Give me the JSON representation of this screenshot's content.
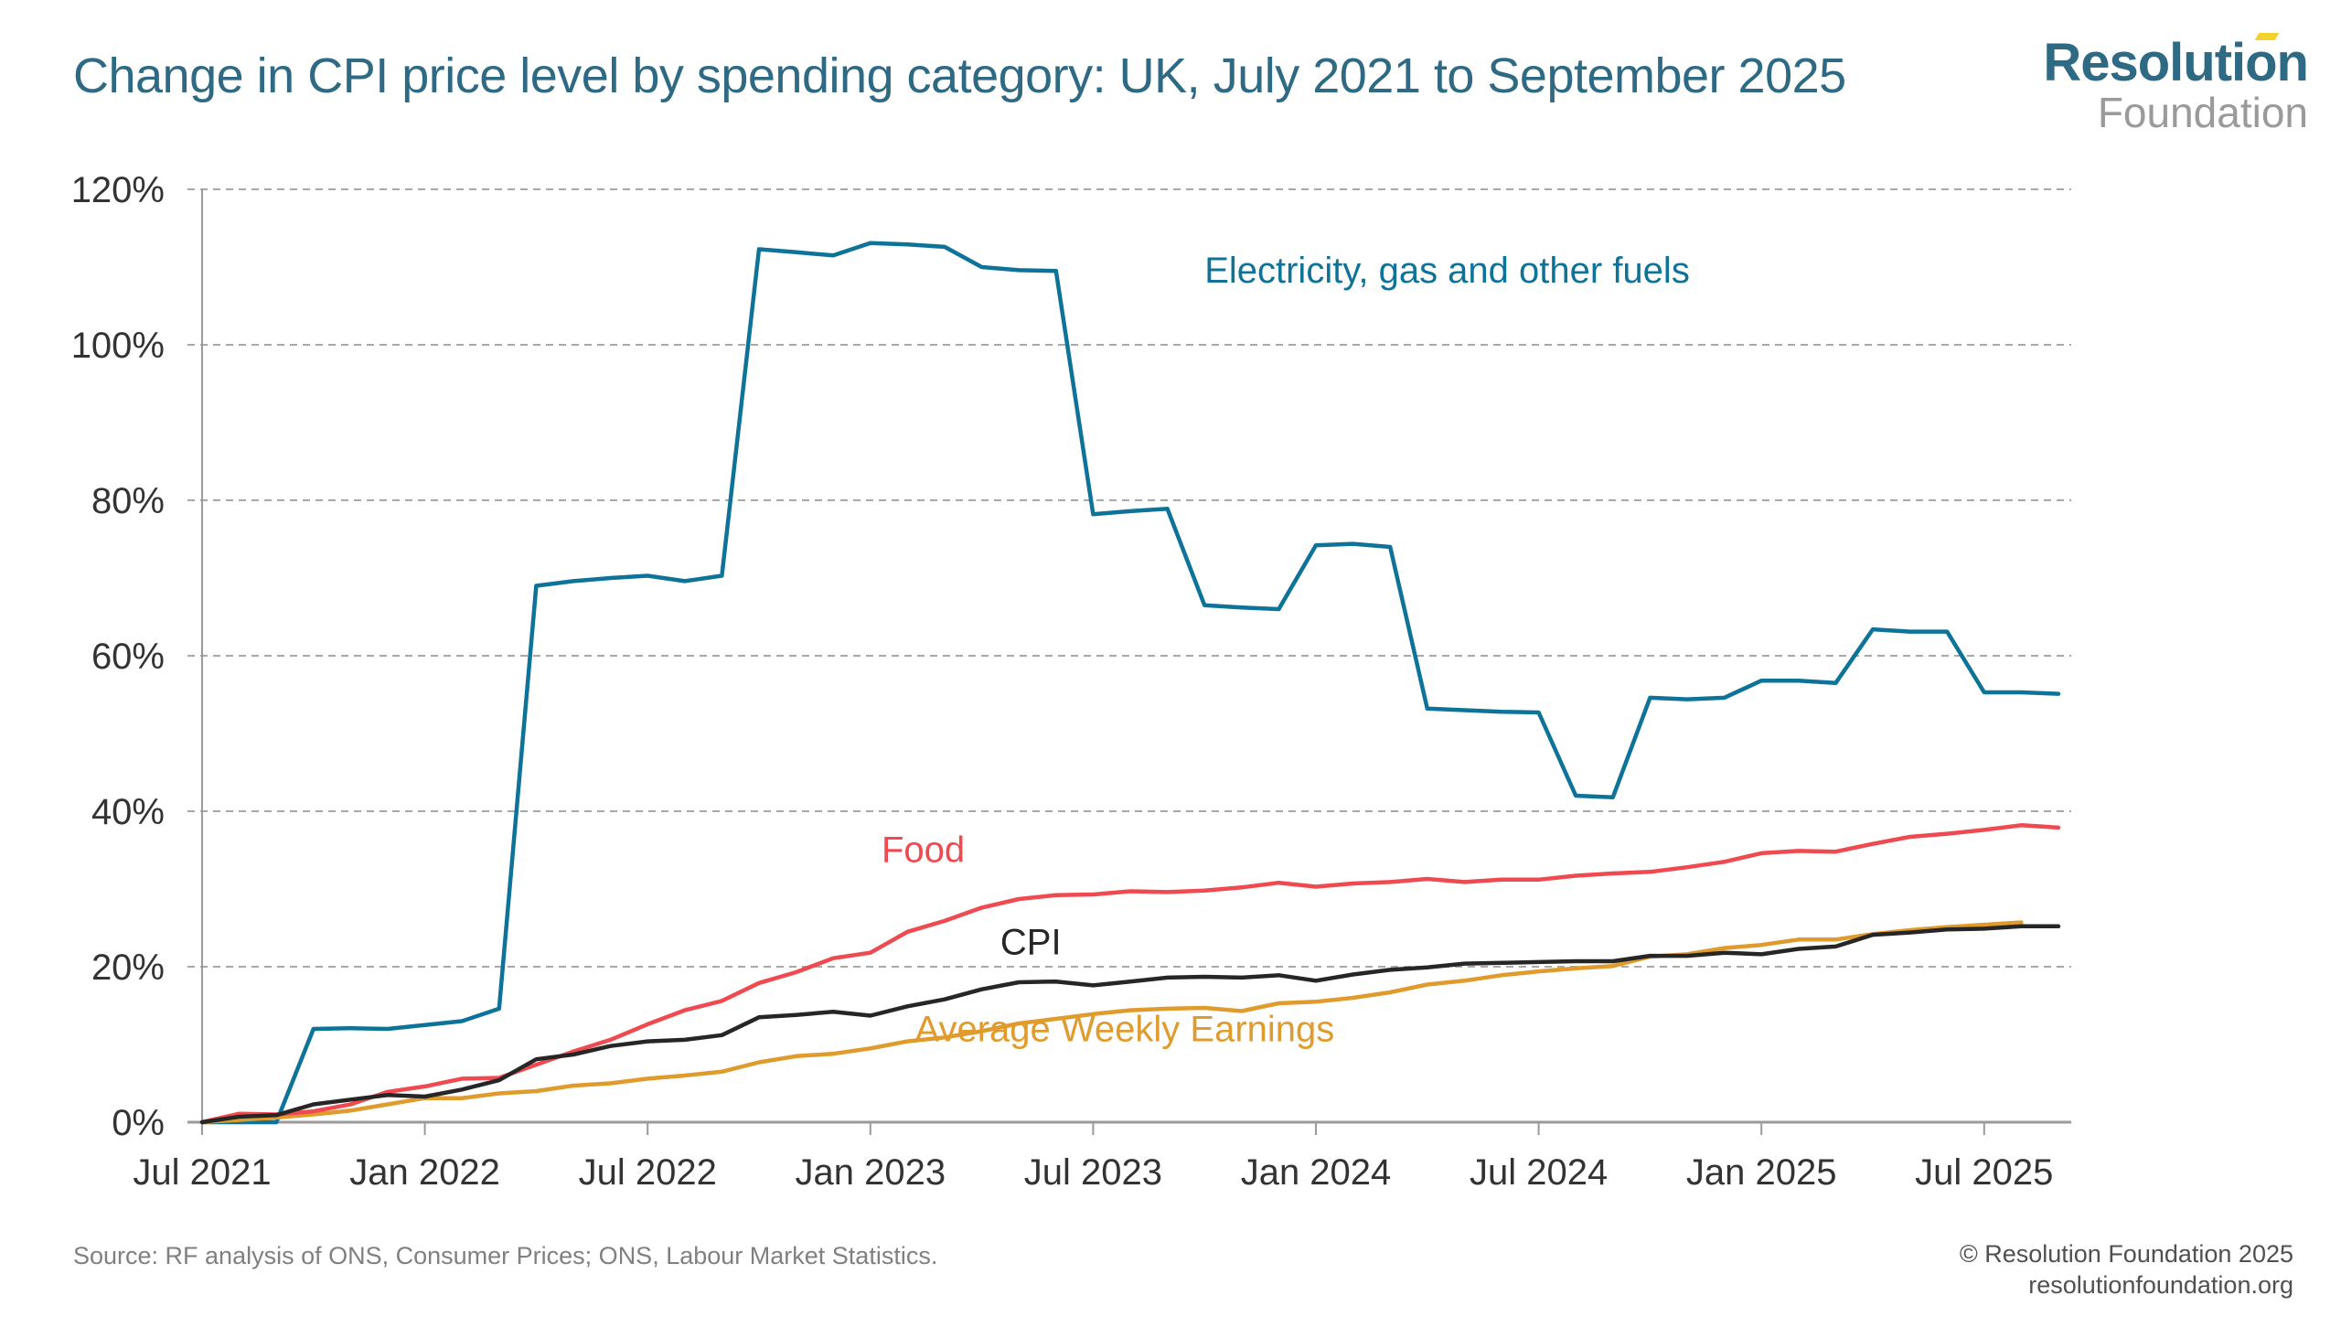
{
  "title": "Change in CPI price level by spending category: UK, July 2021 to September 2025",
  "logo": {
    "line1": "Resolution",
    "line2": "Foundation",
    "accent_color": "#f2d22a",
    "primary_color": "#2e6a84"
  },
  "footer": {
    "source": "Source: RF analysis of ONS, Consumer Prices; ONS, Labour Market Statistics.",
    "copyright": "© Resolution Foundation 2025",
    "website": "resolutionfoundation.org"
  },
  "chart_data": {
    "type": "line",
    "title": "Change in CPI price level by spending category: UK, July 2021 to September 2025",
    "xlabel": "",
    "ylabel": "",
    "x_start": "Jul 2021",
    "x_end": "Sep 2025",
    "x_unit": "month",
    "ylim": [
      0,
      120
    ],
    "y_ticks": [
      0,
      20,
      40,
      60,
      80,
      100,
      120
    ],
    "y_tick_labels": [
      "0%",
      "20%",
      "40%",
      "60%",
      "80%",
      "100%",
      "120%"
    ],
    "x_ticks": [
      {
        "month_index": 0,
        "label": "Jul 2021"
      },
      {
        "month_index": 6,
        "label": "Jan 2022"
      },
      {
        "month_index": 12,
        "label": "Jul 2022"
      },
      {
        "month_index": 18,
        "label": "Jan 2023"
      },
      {
        "month_index": 24,
        "label": "Jul 2023"
      },
      {
        "month_index": 30,
        "label": "Jan 2024"
      },
      {
        "month_index": 36,
        "label": "Jul 2024"
      },
      {
        "month_index": 42,
        "label": "Jan 2025"
      },
      {
        "month_index": 48,
        "label": "Jul 2025"
      }
    ],
    "grid": true,
    "legend": "inline-labels",
    "series": [
      {
        "name": "Electricity, gas and other fuels",
        "color": "#0e7399",
        "label_pos": [
          27,
          108
        ],
        "values": [
          0,
          0,
          0,
          12.0,
          12.1,
          12.0,
          12.5,
          13.0,
          14.6,
          69.0,
          69.6,
          70.0,
          70.3,
          69.6,
          70.3,
          112.3,
          111.9,
          111.5,
          113.1,
          112.9,
          112.6,
          110.0,
          109.6,
          109.5,
          78.2,
          78.6,
          78.9,
          66.5,
          66.2,
          66.0,
          74.2,
          74.4,
          74.0,
          53.2,
          53.0,
          52.8,
          52.7,
          42.0,
          41.8,
          54.6,
          54.4,
          54.6,
          56.8,
          56.8,
          56.5,
          63.4,
          63.1,
          63.1,
          55.3,
          55.3,
          55.1
        ]
      },
      {
        "name": "Food",
        "color": "#ee4a4f",
        "label_pos": [
          18.3,
          33.5
        ],
        "values": [
          0,
          1.1,
          1.0,
          1.4,
          2.3,
          3.9,
          4.6,
          5.6,
          5.7,
          7.4,
          9.1,
          10.6,
          12.6,
          14.4,
          15.6,
          17.9,
          19.3,
          21.1,
          21.8,
          24.5,
          25.9,
          27.6,
          28.7,
          29.2,
          29.3,
          29.7,
          29.6,
          29.8,
          30.2,
          30.8,
          30.3,
          30.7,
          30.9,
          31.3,
          30.9,
          31.2,
          31.2,
          31.7,
          32.0,
          32.2,
          32.8,
          33.5,
          34.6,
          34.9,
          34.8,
          35.8,
          36.7,
          37.1,
          37.6,
          38.2,
          37.9
        ]
      },
      {
        "name": "CPI",
        "color": "#262626",
        "label_pos": [
          21.5,
          21.6
        ],
        "values": [
          0,
          0.7,
          0.9,
          2.3,
          2.9,
          3.5,
          3.3,
          4.2,
          5.4,
          8.1,
          8.7,
          9.8,
          10.4,
          10.6,
          11.2,
          13.5,
          13.8,
          14.2,
          13.7,
          14.9,
          15.8,
          17.1,
          18.0,
          18.1,
          17.6,
          18.1,
          18.6,
          18.7,
          18.6,
          18.9,
          18.2,
          19.0,
          19.6,
          19.9,
          20.4,
          20.5,
          20.6,
          20.7,
          20.7,
          21.4,
          21.4,
          21.8,
          21.6,
          22.3,
          22.6,
          24.1,
          24.4,
          24.8,
          24.9,
          25.2,
          25.2
        ]
      },
      {
        "name": "Average Weekly Earnings",
        "color": "#e09b2d",
        "label_pos": [
          19.2,
          10.4
        ],
        "values": [
          0,
          0.3,
          0.6,
          1.0,
          1.5,
          2.3,
          3.1,
          3.1,
          3.7,
          4.0,
          4.7,
          5.0,
          5.6,
          6.0,
          6.5,
          7.7,
          8.5,
          8.8,
          9.5,
          10.4,
          10.9,
          11.7,
          12.7,
          13.3,
          13.9,
          14.4,
          14.6,
          14.7,
          14.3,
          15.3,
          15.5,
          16.0,
          16.7,
          17.7,
          18.2,
          18.9,
          19.4,
          19.8,
          20.1,
          21.3,
          21.6,
          22.4,
          22.8,
          23.5,
          23.5,
          24.2,
          24.7,
          25.1,
          25.4,
          25.7
        ]
      }
    ]
  }
}
